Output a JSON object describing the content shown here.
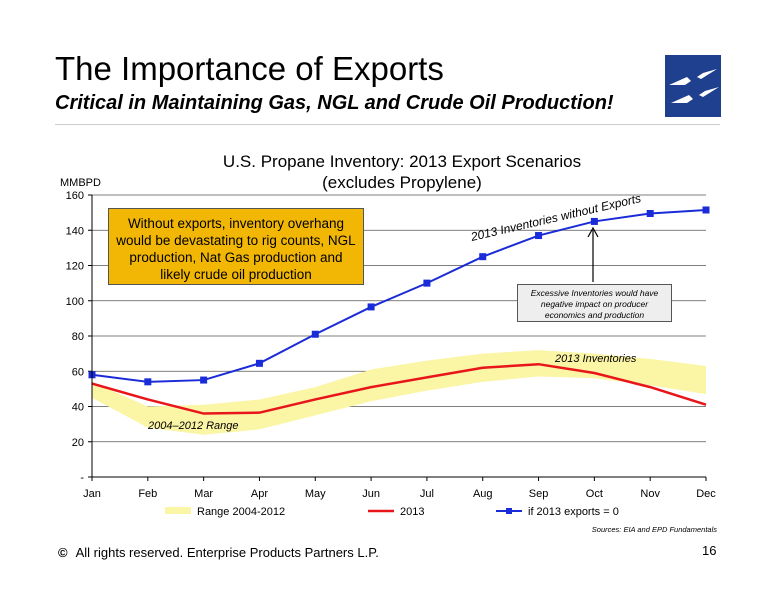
{
  "header": {
    "title": "The Importance of Exports",
    "subtitle": "Critical in Maintaining Gas, NGL and Crude Oil Production!"
  },
  "footer": {
    "copyright_symbol": "©",
    "copyright_text": "All rights reserved. Enterprise Products Partners L.P.",
    "page_number": "16"
  },
  "logo": {
    "icon": "lightning-bolt-logo-icon",
    "color": "#1f3f8f"
  },
  "chart_data": {
    "type": "line",
    "title": "U.S. Propane Inventory:  2013 Export Scenarios",
    "subtitle": "(excludes Propylene)",
    "ylabel": "MMBPD",
    "xlabel": "",
    "ylim": [
      0,
      160
    ],
    "yticks": [
      0,
      20,
      40,
      60,
      80,
      100,
      120,
      140,
      160
    ],
    "ytick_labels": [
      "-",
      "20",
      "40",
      "60",
      "80",
      "100",
      "120",
      "140",
      "160"
    ],
    "categories": [
      "Jan",
      "Feb",
      "Mar",
      "Apr",
      "May",
      "Jun",
      "Jul",
      "Aug",
      "Sep",
      "Oct",
      "Nov",
      "Dec"
    ],
    "grid": "horizontal",
    "legend_position": "bottom",
    "series": [
      {
        "name": "Range 2004-2012",
        "kind": "band",
        "color": "#fbf5a6",
        "low": [
          45,
          28,
          24,
          27,
          35,
          43,
          49,
          54,
          57,
          56,
          52,
          47
        ],
        "high": [
          54,
          40,
          41,
          44,
          51,
          61,
          66,
          70,
          72,
          70,
          67,
          63
        ]
      },
      {
        "name": "2013",
        "kind": "line",
        "color": "#e8151b",
        "values": [
          53,
          44,
          36,
          36.5,
          44,
          51,
          56.5,
          62,
          64,
          59,
          51,
          41
        ]
      },
      {
        "name": "if 2013 exports = 0",
        "kind": "line-markers",
        "color": "#1a2bd8",
        "values": [
          58,
          54,
          55,
          64.5,
          81,
          96.5,
          110,
          125,
          137,
          145,
          149.5,
          151.5
        ]
      }
    ],
    "annotations": {
      "range_label": "2004–2012 Range",
      "inventories_label": "2013 Inventories",
      "no_exports_label": "2013 Inventories without Exports",
      "callout_main": "Without exports, inventory overhang would be devastating to rig counts, NGL production, Nat Gas production and likely crude oil production",
      "callout_excess": "Excessive Inventories would have negative impact on producer economics and production",
      "sources": "Sources:  EIA and EPD Fundamentals"
    }
  }
}
